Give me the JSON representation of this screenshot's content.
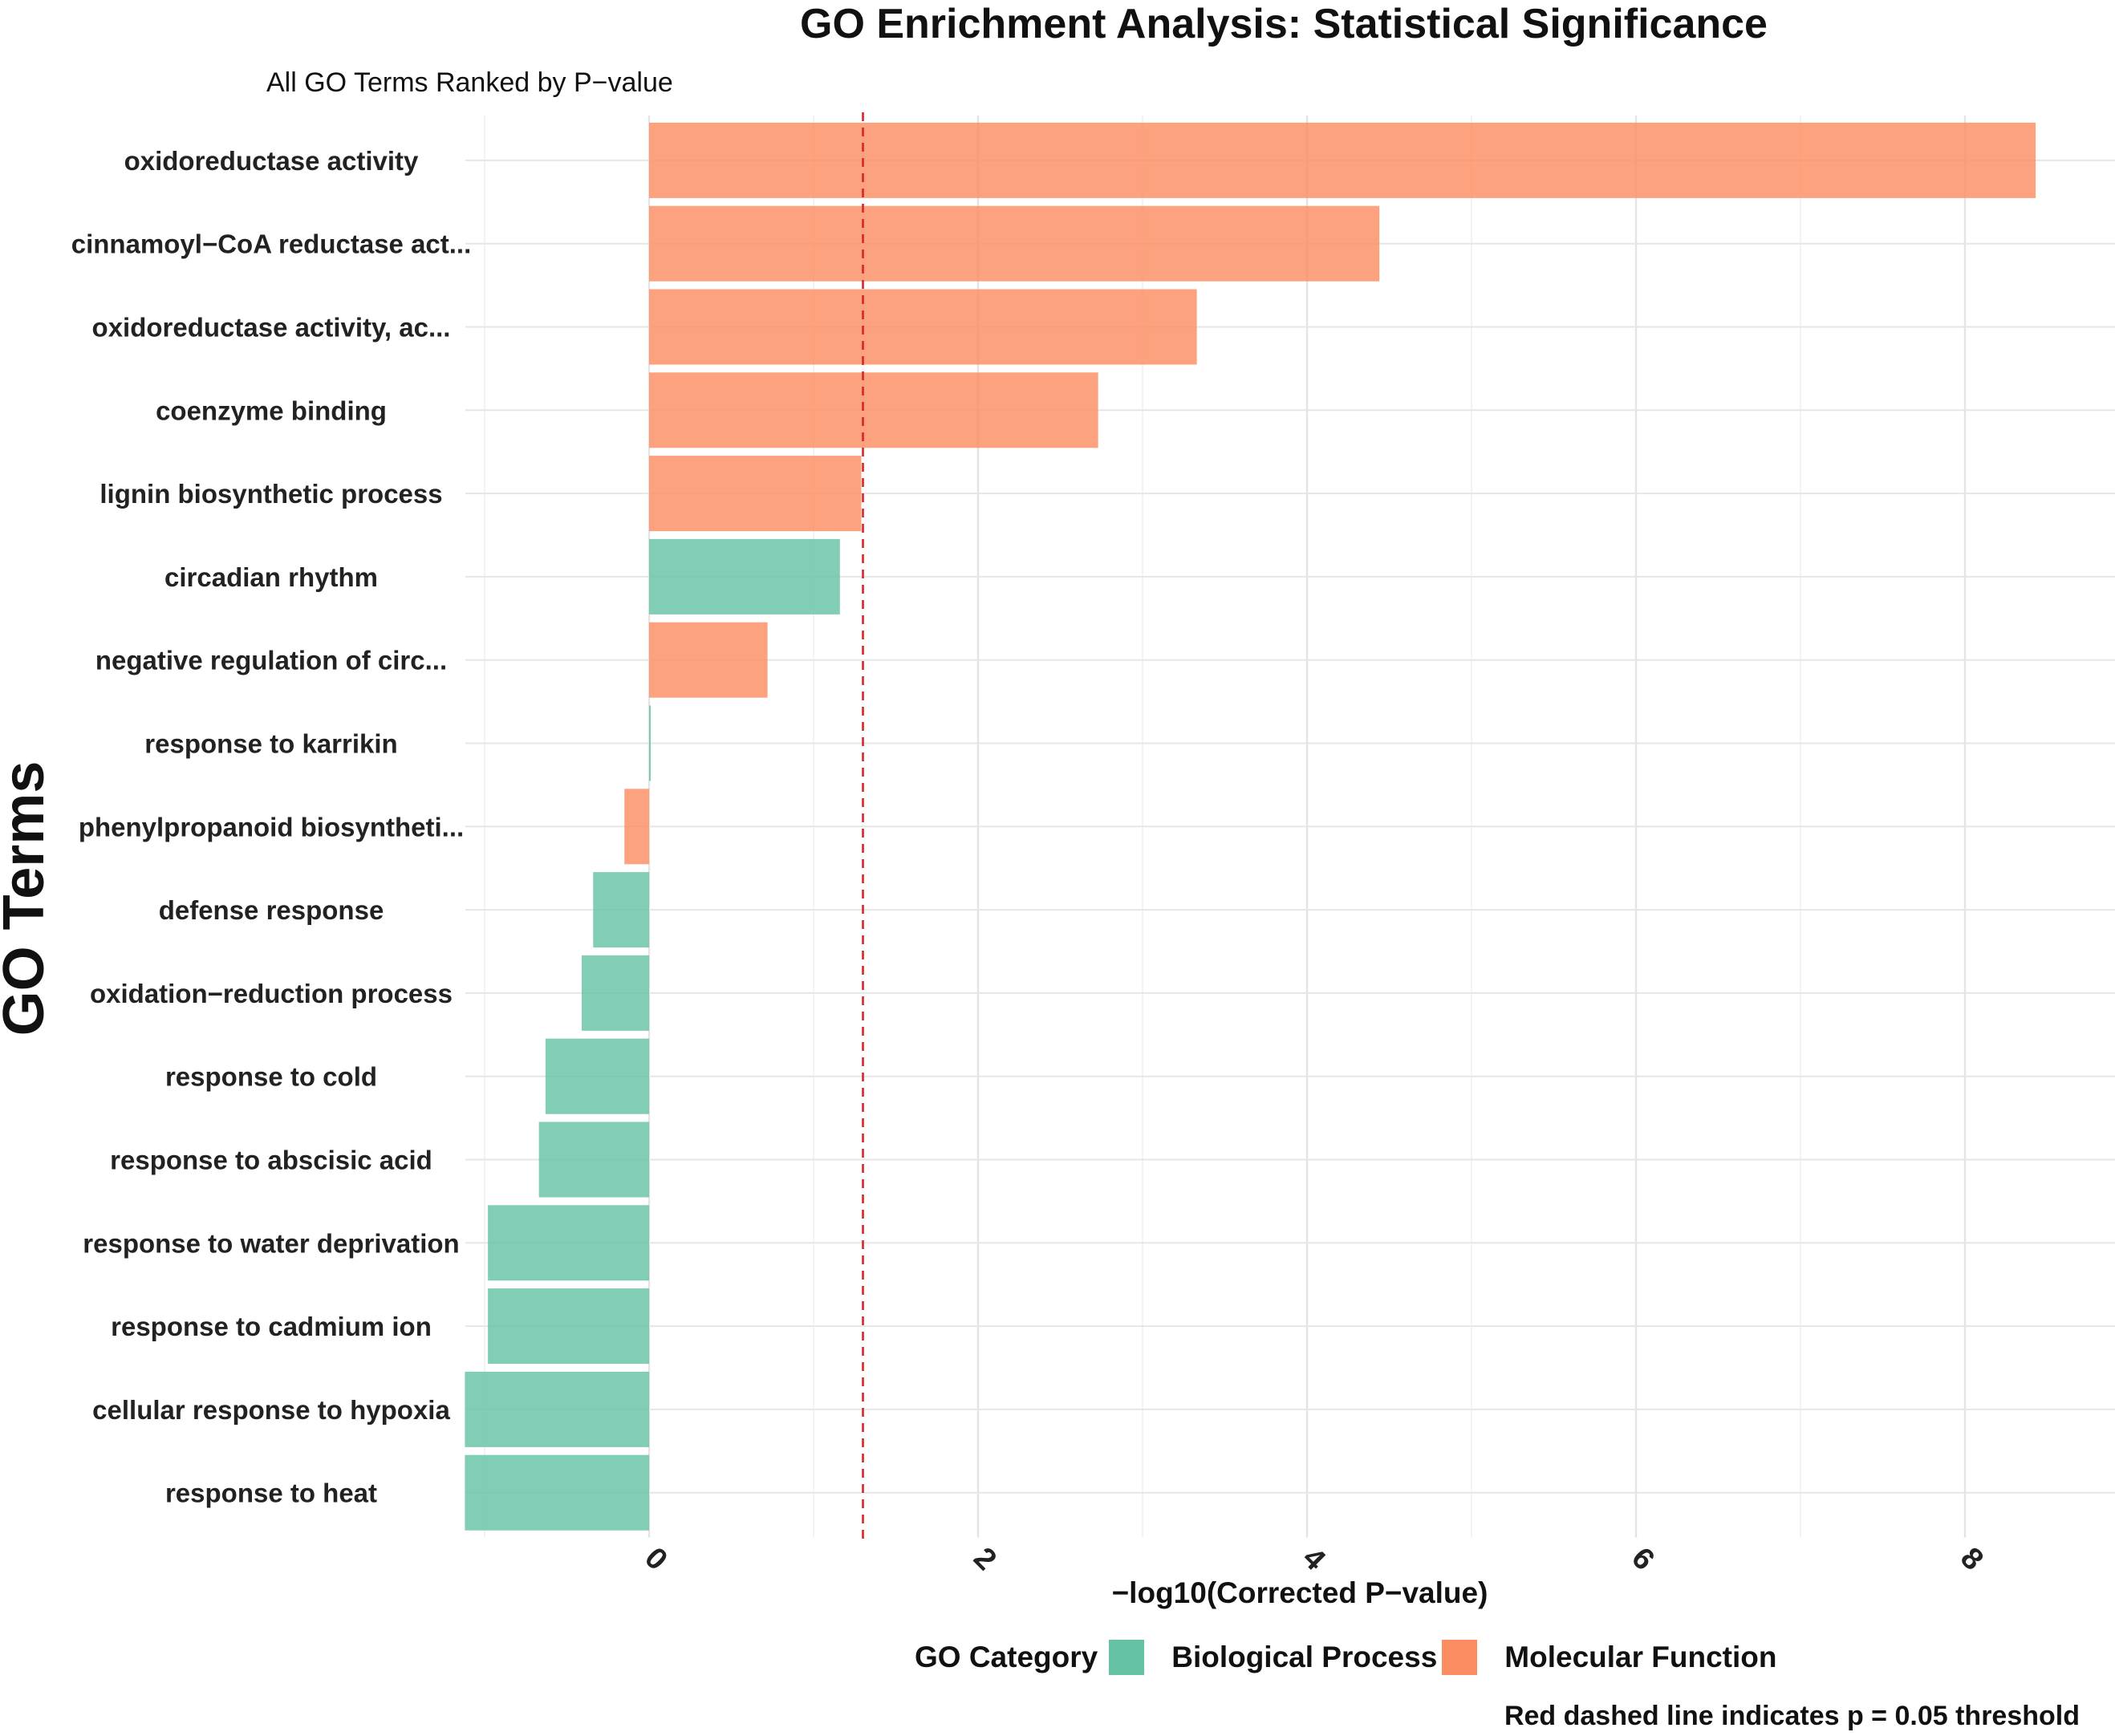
{
  "chart_data": {
    "type": "bar",
    "orientation": "horizontal",
    "title": "GO Enrichment Analysis: Statistical Significance",
    "subtitle": "All GO Terms Ranked by P−value",
    "xlabel": "−log10(Corrected P−value)",
    "ylabel": "GO Terms",
    "xlim": [
      -1.12,
      8.95
    ],
    "x_ticks": [
      0,
      2,
      4,
      6,
      8
    ],
    "x_tick_labels": [
      "0",
      "2",
      "4",
      "6",
      "8"
    ],
    "grid": true,
    "threshold": {
      "value": 1.3,
      "style": "red dashed",
      "color": "#d62728"
    },
    "legend": {
      "title": "GO Category",
      "position": "bottom",
      "items": [
        {
          "label": "Biological Process",
          "color": "#66c2a5"
        },
        {
          "label": "Molecular Function",
          "color": "#fc8d62"
        }
      ]
    },
    "categories": [
      "oxidoreductase activity",
      "cinnamoyl−CoA reductase act...",
      "oxidoreductase activity, ac...",
      "coenzyme binding",
      "lignin biosynthetic process",
      "circadian rhythm",
      "negative regulation of circ...",
      "response to karrikin",
      "phenylpropanoid biosyntheti...",
      "defense response",
      "oxidation−reduction process",
      "response to cold",
      "response to abscisic acid",
      "response to water deprivation",
      "response to cadmium ion",
      "cellular response to hypoxia",
      "response to heat"
    ],
    "values": [
      8.43,
      4.44,
      3.33,
      2.73,
      1.29,
      1.16,
      0.72,
      0.01,
      -0.15,
      -0.34,
      -0.41,
      -0.63,
      -0.67,
      -0.98,
      -0.98,
      -1.12,
      -1.12
    ],
    "category_group": [
      "Molecular Function",
      "Molecular Function",
      "Molecular Function",
      "Molecular Function",
      "Molecular Function",
      "Biological Process",
      "Molecular Function",
      "Biological Process",
      "Molecular Function",
      "Biological Process",
      "Biological Process",
      "Biological Process",
      "Biological Process",
      "Biological Process",
      "Biological Process",
      "Biological Process",
      "Biological Process"
    ]
  },
  "caption": "Red dashed line indicates p = 0.05 threshold"
}
